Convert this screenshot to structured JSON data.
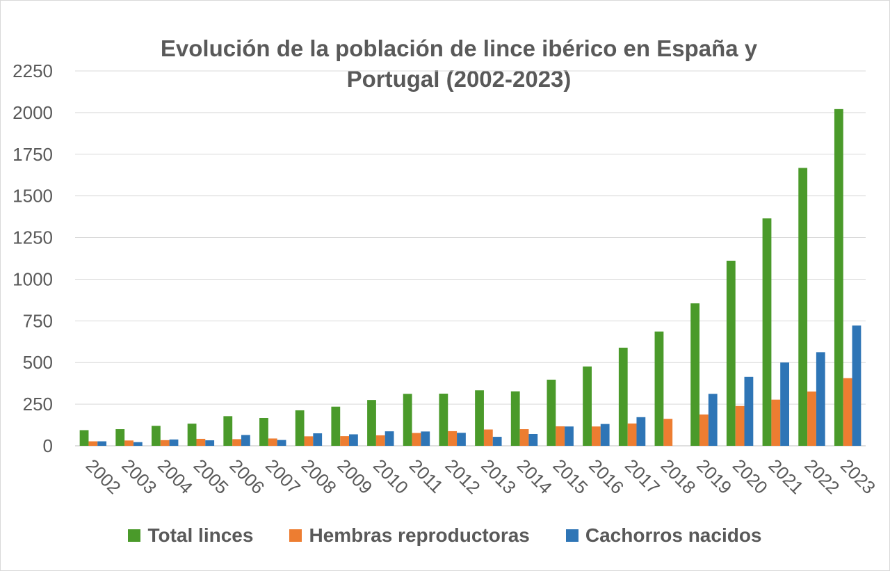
{
  "chart_data": {
    "type": "bar",
    "title": "Evolución de la población de lince ibérico en España y Portugal (2002-2023)",
    "categories": [
      "2002",
      "2003",
      "2004",
      "2005",
      "2006",
      "2007",
      "2008",
      "2009",
      "2010",
      "2011",
      "2012",
      "2013",
      "2014",
      "2015",
      "2016",
      "2017",
      "2018",
      "2019",
      "2020",
      "2021",
      "2022",
      "2023"
    ],
    "series": [
      {
        "name": "Total linces",
        "color": "#4a9a2a",
        "values": [
          94,
          100,
          120,
          133,
          178,
          167,
          213,
          235,
          275,
          312,
          313,
          333,
          327,
          397,
          476,
          589,
          686,
          855,
          1111,
          1365,
          1668,
          2021
        ]
      },
      {
        "name": "Hembras reproductoras",
        "color": "#ed7d31",
        "values": [
          27,
          32,
          34,
          42,
          40,
          44,
          57,
          58,
          63,
          77,
          88,
          98,
          100,
          117,
          116,
          134,
          162,
          188,
          239,
          277,
          326,
          406
        ]
      },
      {
        "name": "Cachorros nacidos",
        "color": "#2e75b6",
        "values": [
          27,
          22,
          38,
          33,
          65,
          35,
          75,
          69,
          87,
          86,
          78,
          54,
          71,
          116,
          131,
          172,
          0,
          312,
          414,
          500,
          562,
          722
        ]
      }
    ],
    "yticks": [
      0,
      250,
      500,
      750,
      1000,
      1250,
      1500,
      1750,
      2000,
      2250
    ],
    "ylim": [
      0,
      2250
    ],
    "xlabel": "",
    "ylabel": "",
    "grid": true,
    "legend": "bottom"
  }
}
